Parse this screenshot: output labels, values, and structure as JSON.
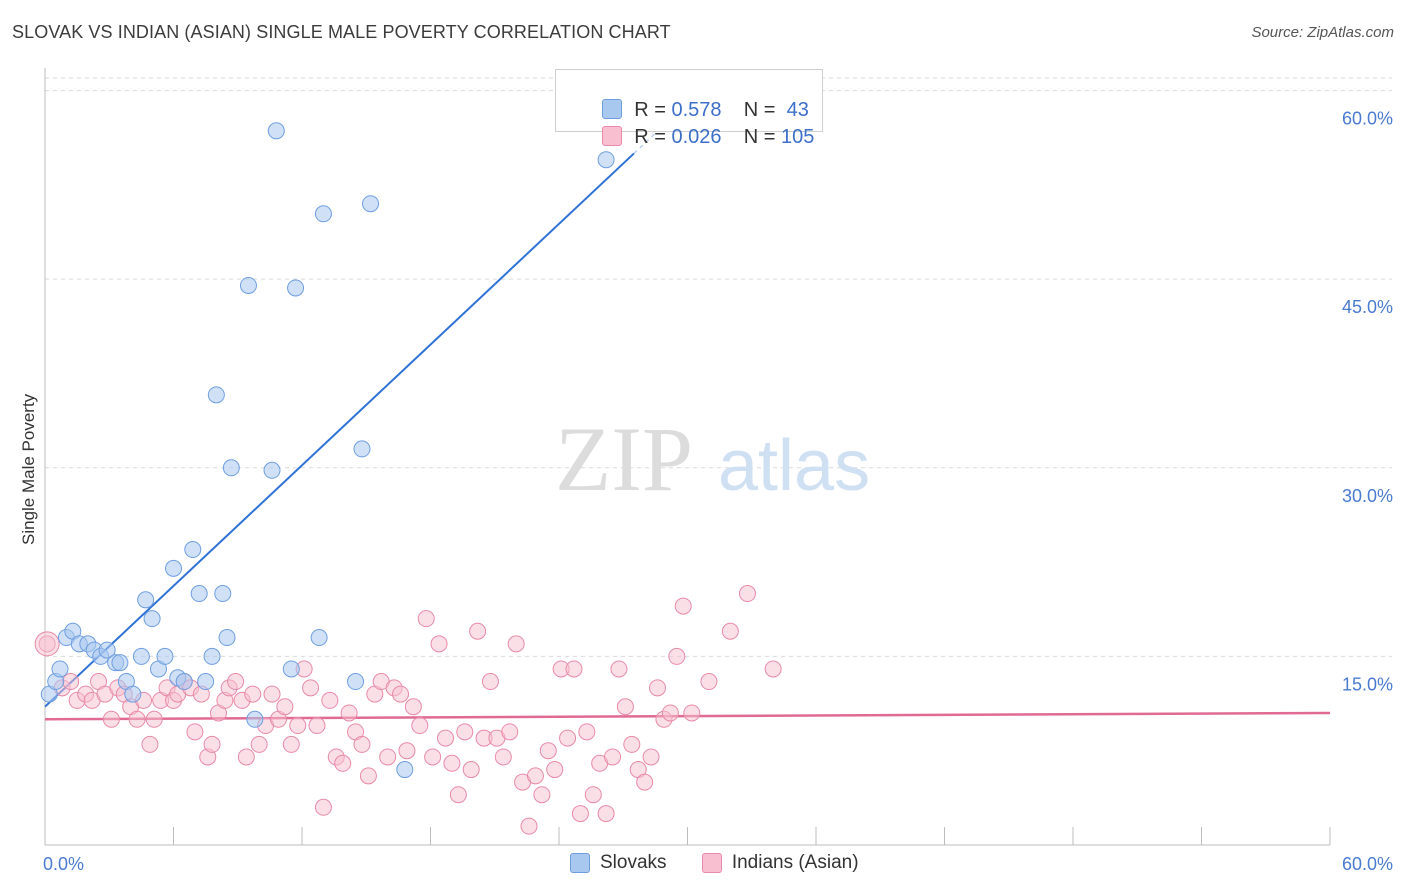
{
  "header": {
    "title": "SLOVAK VS INDIAN (ASIAN) SINGLE MALE POVERTY CORRELATION CHART",
    "source": "Source: ZipAtlas.com"
  },
  "legend": {
    "rows": [
      {
        "r_label": "R =",
        "r_value": "0.578",
        "n_label": "N =",
        "n_value": "43",
        "color": "#a9c8f0",
        "border": "#6f9ee0"
      },
      {
        "r_label": "R =",
        "r_value": "0.026",
        "n_label": "N =",
        "n_value": "105",
        "color": "#f7bfd0",
        "border": "#e88aaa"
      }
    ]
  },
  "bottom_legend": [
    "Slovaks",
    "Indians (Asian)"
  ],
  "watermark": {
    "zip": "ZIP",
    "atlas": "atlas"
  },
  "colors": {
    "blue_fill": "#a9c8f0",
    "blue_stroke": "#6f9ee0",
    "blue_line": "#2f72d6",
    "pink_fill": "#f7bfd0",
    "pink_stroke": "#e88aaa",
    "pink_line": "#e06a93",
    "tick_text": "#4a7bd0",
    "grid": "#d9d9d9"
  },
  "chart_data": {
    "type": "scatter",
    "title": "SLOVAK VS INDIAN (ASIAN) SINGLE MALE POVERTY CORRELATION CHART",
    "xlabel": "",
    "ylabel": "Single Male Poverty",
    "xlim": [
      0,
      60
    ],
    "ylim": [
      0,
      61
    ],
    "x_tick_labels": [
      "0.0%",
      "60.0%"
    ],
    "y_ticks": [
      15,
      30,
      45,
      60
    ],
    "y_tick_labels": [
      "15.0%",
      "30.0%",
      "45.0%",
      "60.0%"
    ],
    "grid": true,
    "legend_position": "top-center",
    "series": [
      {
        "name": "Slovaks",
        "color": "#a9c8f0",
        "r": 0.578,
        "n": 43,
        "trend": {
          "x": [
            0,
            30
          ],
          "y": [
            11.0,
            59.0
          ],
          "solid_until_x": 30.0
        },
        "points": [
          [
            0.2,
            12.0
          ],
          [
            0.5,
            13.0
          ],
          [
            0.7,
            14.0
          ],
          [
            1.0,
            16.5
          ],
          [
            1.3,
            17.0
          ],
          [
            1.6,
            16.0
          ],
          [
            2.0,
            16.0
          ],
          [
            2.3,
            15.5
          ],
          [
            2.6,
            15.0
          ],
          [
            2.9,
            15.5
          ],
          [
            3.3,
            14.5
          ],
          [
            3.5,
            14.5
          ],
          [
            3.8,
            13.0
          ],
          [
            4.1,
            12.0
          ],
          [
            4.5,
            15.0
          ],
          [
            4.7,
            19.5
          ],
          [
            5.0,
            18.0
          ],
          [
            5.3,
            14.0
          ],
          [
            5.6,
            15.0
          ],
          [
            6.0,
            22.0
          ],
          [
            6.2,
            13.3
          ],
          [
            6.5,
            13.0
          ],
          [
            6.9,
            23.5
          ],
          [
            7.2,
            20.0
          ],
          [
            7.5,
            13.0
          ],
          [
            7.8,
            15.0
          ],
          [
            8.0,
            35.8
          ],
          [
            8.3,
            20.0
          ],
          [
            8.5,
            16.5
          ],
          [
            8.7,
            30.0
          ],
          [
            9.5,
            44.5
          ],
          [
            9.8,
            10.0
          ],
          [
            10.6,
            29.8
          ],
          [
            10.8,
            56.8
          ],
          [
            11.5,
            14.0
          ],
          [
            11.7,
            44.3
          ],
          [
            12.8,
            16.5
          ],
          [
            13.0,
            50.2
          ],
          [
            14.5,
            13.0
          ],
          [
            14.8,
            31.5
          ],
          [
            15.2,
            51.0
          ],
          [
            16.8,
            6.0
          ],
          [
            26.2,
            54.5
          ]
        ]
      },
      {
        "name": "Indians (Asian)",
        "color": "#f7bfd0",
        "r": 0.026,
        "n": 105,
        "trend": {
          "x": [
            0,
            60
          ],
          "y": [
            10.0,
            10.5
          ]
        },
        "points": [
          [
            0.1,
            16.0
          ],
          [
            0.8,
            12.5
          ],
          [
            1.2,
            13.0
          ],
          [
            1.5,
            11.5
          ],
          [
            1.9,
            12.0
          ],
          [
            2.2,
            11.5
          ],
          [
            2.5,
            13.0
          ],
          [
            2.8,
            12.0
          ],
          [
            3.1,
            10.0
          ],
          [
            3.4,
            12.5
          ],
          [
            3.7,
            12.0
          ],
          [
            4.0,
            11.0
          ],
          [
            4.3,
            10.0
          ],
          [
            4.6,
            11.5
          ],
          [
            4.9,
            8.0
          ],
          [
            5.1,
            10.0
          ],
          [
            5.4,
            11.5
          ],
          [
            5.7,
            12.5
          ],
          [
            6.0,
            11.5
          ],
          [
            6.2,
            12.0
          ],
          [
            6.5,
            13.0
          ],
          [
            6.8,
            12.5
          ],
          [
            7.0,
            9.0
          ],
          [
            7.3,
            12.0
          ],
          [
            7.6,
            7.0
          ],
          [
            7.8,
            8.0
          ],
          [
            8.1,
            10.5
          ],
          [
            8.4,
            11.5
          ],
          [
            8.6,
            12.5
          ],
          [
            8.9,
            13.0
          ],
          [
            9.2,
            11.5
          ],
          [
            9.4,
            7.0
          ],
          [
            9.7,
            12.0
          ],
          [
            10.0,
            8.0
          ],
          [
            10.3,
            9.5
          ],
          [
            10.6,
            12.0
          ],
          [
            10.9,
            10.0
          ],
          [
            11.2,
            11.0
          ],
          [
            11.5,
            8.0
          ],
          [
            11.8,
            9.5
          ],
          [
            12.1,
            14.0
          ],
          [
            12.4,
            12.5
          ],
          [
            12.7,
            9.5
          ],
          [
            13.0,
            3.0
          ],
          [
            13.3,
            11.5
          ],
          [
            13.6,
            7.0
          ],
          [
            13.9,
            6.5
          ],
          [
            14.2,
            10.5
          ],
          [
            14.5,
            9.0
          ],
          [
            14.8,
            8.0
          ],
          [
            15.1,
            5.5
          ],
          [
            15.4,
            12.0
          ],
          [
            15.7,
            13.0
          ],
          [
            16.0,
            7.0
          ],
          [
            16.3,
            12.5
          ],
          [
            16.6,
            12.0
          ],
          [
            16.9,
            7.5
          ],
          [
            17.2,
            11.0
          ],
          [
            17.5,
            9.5
          ],
          [
            17.8,
            18.0
          ],
          [
            18.1,
            7.0
          ],
          [
            18.4,
            16.0
          ],
          [
            18.7,
            8.5
          ],
          [
            19.0,
            6.5
          ],
          [
            19.3,
            4.0
          ],
          [
            19.6,
            9.0
          ],
          [
            19.9,
            6.0
          ],
          [
            20.2,
            17.0
          ],
          [
            20.5,
            8.5
          ],
          [
            20.8,
            13.0
          ],
          [
            21.1,
            8.5
          ],
          [
            21.4,
            7.0
          ],
          [
            21.7,
            9.0
          ],
          [
            22.0,
            16.0
          ],
          [
            22.3,
            5.0
          ],
          [
            22.6,
            1.5
          ],
          [
            22.9,
            5.5
          ],
          [
            23.2,
            4.0
          ],
          [
            23.5,
            7.5
          ],
          [
            23.8,
            6.0
          ],
          [
            24.1,
            14.0
          ],
          [
            24.4,
            8.5
          ],
          [
            24.7,
            14.0
          ],
          [
            25.0,
            2.5
          ],
          [
            25.3,
            9.0
          ],
          [
            25.6,
            4.0
          ],
          [
            25.9,
            6.5
          ],
          [
            26.2,
            2.5
          ],
          [
            26.5,
            7.0
          ],
          [
            26.8,
            14.0
          ],
          [
            27.1,
            11.0
          ],
          [
            27.4,
            8.0
          ],
          [
            27.7,
            6.0
          ],
          [
            28.0,
            5.0
          ],
          [
            28.3,
            7.0
          ],
          [
            28.6,
            12.5
          ],
          [
            28.9,
            10.0
          ],
          [
            29.2,
            10.5
          ],
          [
            29.5,
            15.0
          ],
          [
            29.8,
            19.0
          ],
          [
            30.2,
            10.5
          ],
          [
            31.0,
            13.0
          ],
          [
            32.0,
            17.0
          ],
          [
            32.8,
            20.0
          ],
          [
            34.0,
            14.0
          ]
        ]
      }
    ]
  }
}
